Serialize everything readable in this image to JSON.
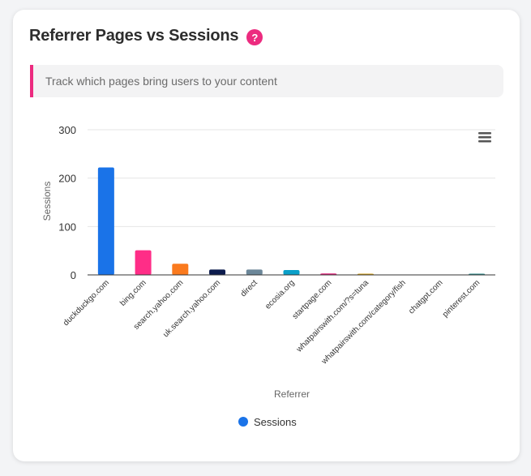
{
  "card": {
    "title": "Referrer Pages vs Sessions",
    "help_icon": "?",
    "description": "Track which pages bring users to your content"
  },
  "menu_icon": "hamburger-menu-icon",
  "colors": {
    "accent": "#ec2b7f",
    "series": "#1a73e8"
  },
  "chart_data": {
    "type": "bar",
    "xlabel": "Referrer",
    "ylabel": "Sessions",
    "ylim": [
      0,
      300
    ],
    "yticks": [
      0,
      100,
      200,
      300
    ],
    "grid": true,
    "legend_position": "bottom",
    "categories": [
      "duckduckgo.com",
      "bing.com",
      "search.yahoo.com",
      "uk.search.yahoo.com",
      "direct",
      "ecosia.org",
      "startpage.com",
      "whatpairswith.com/?s=tuna",
      "whatpairswith.com/category/fish",
      "chatgpt.com",
      "pinterest.com"
    ],
    "series": [
      {
        "name": "Sessions",
        "values": [
          222,
          51,
          23,
          11,
          11,
          10,
          3,
          2,
          0,
          0,
          1
        ],
        "colors": [
          "#1a73e8",
          "#ff2d87",
          "#fa7a1e",
          "#0c1b4d",
          "#6c8799",
          "#0aa0c9",
          "#e0217a",
          "#d4a017",
          "#555555",
          "#555555",
          "#2e8b8b"
        ],
        "legend_color": "#1a73e8"
      }
    ]
  }
}
